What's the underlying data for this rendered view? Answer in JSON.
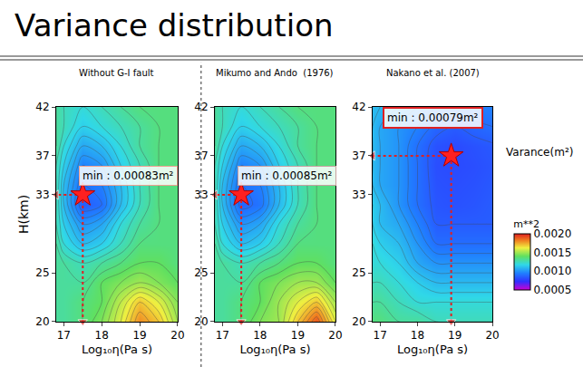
{
  "title": "Variance distribution",
  "colorbar": {
    "title": "m**2",
    "label": "Varance(m²)",
    "range": [
      0.0005,
      0.002
    ],
    "ticks": [
      {
        "value": 0.0005,
        "label": "0.0005"
      },
      {
        "value": 0.001,
        "label": "0.0010"
      },
      {
        "value": 0.0015,
        "label": "0.0015"
      },
      {
        "value": 0.002,
        "label": "0.0020"
      }
    ]
  },
  "chart_data": [
    {
      "type": "heatmap",
      "subtitle": "Without G-I fault",
      "x_label": "Log₁₀η(Pa s)",
      "y_label": "H(km)",
      "xlim": [
        16.8,
        20
      ],
      "ylim": [
        20,
        42
      ],
      "xticks": [
        17,
        18,
        19,
        20
      ],
      "yticks": [
        20,
        25,
        33,
        37,
        42
      ],
      "x": [
        16.8,
        17,
        17.5,
        18,
        18.5,
        19,
        19.5,
        20
      ],
      "y": [
        20,
        22,
        24,
        26,
        28,
        30,
        32,
        34,
        36,
        38,
        40,
        42
      ],
      "z": [
        [
          0.0013,
          0.0013,
          0.00135,
          0.00145,
          0.0016,
          0.0018,
          0.0017,
          0.0015
        ],
        [
          0.0013,
          0.0013,
          0.00135,
          0.0014,
          0.00155,
          0.0017,
          0.0016,
          0.00145
        ],
        [
          0.0013,
          0.0013,
          0.0013,
          0.0014,
          0.00145,
          0.0015,
          0.00145,
          0.0014
        ],
        [
          0.0013,
          0.0013,
          0.00125,
          0.0013,
          0.00135,
          0.0014,
          0.0014,
          0.00135
        ],
        [
          0.0013,
          0.0012,
          0.0011,
          0.00115,
          0.00125,
          0.00135,
          0.00135,
          0.00135
        ],
        [
          0.00125,
          0.00115,
          0.001,
          0.00105,
          0.0012,
          0.0013,
          0.00135,
          0.00135
        ],
        [
          0.00125,
          0.0011,
          0.00085,
          0.0009,
          0.0011,
          0.00125,
          0.00135,
          0.00135
        ],
        [
          0.00125,
          0.0011,
          0.0009,
          0.00095,
          0.0011,
          0.00125,
          0.00135,
          0.00135
        ],
        [
          0.00125,
          0.00115,
          0.00095,
          0.001,
          0.00115,
          0.00125,
          0.00135,
          0.00135
        ],
        [
          0.0013,
          0.0012,
          0.00105,
          0.0011,
          0.0012,
          0.0013,
          0.00135,
          0.00135
        ],
        [
          0.0013,
          0.00125,
          0.00115,
          0.0012,
          0.00125,
          0.0013,
          0.00135,
          0.00135
        ],
        [
          0.0013,
          0.00125,
          0.0012,
          0.00125,
          0.0013,
          0.00135,
          0.00135,
          0.00135
        ]
      ],
      "min": {
        "x": 17.5,
        "y": 33,
        "value": 0.00083,
        "label": "min : 0.00083m²"
      }
    },
    {
      "type": "heatmap",
      "subtitle": "Mikumo and Ando  (1976)",
      "x_label": "Log₁₀η(Pa s)",
      "xlim": [
        16.8,
        20
      ],
      "ylim": [
        20,
        42
      ],
      "xticks": [
        17,
        18,
        19,
        20
      ],
      "yticks": [
        20,
        25,
        33,
        37,
        42
      ],
      "x": [
        16.8,
        17,
        17.5,
        18,
        18.5,
        19,
        19.5,
        20
      ],
      "y": [
        20,
        22,
        24,
        26,
        28,
        30,
        32,
        34,
        36,
        38,
        40,
        42
      ],
      "z": [
        [
          0.0013,
          0.0013,
          0.00135,
          0.00145,
          0.0015,
          0.0017,
          0.0019,
          0.0016
        ],
        [
          0.0013,
          0.0013,
          0.00135,
          0.0014,
          0.0015,
          0.0016,
          0.0017,
          0.0015
        ],
        [
          0.0013,
          0.0013,
          0.0013,
          0.0014,
          0.00145,
          0.0015,
          0.0015,
          0.0014
        ],
        [
          0.0013,
          0.0013,
          0.00125,
          0.0013,
          0.00135,
          0.0014,
          0.0014,
          0.00135
        ],
        [
          0.0013,
          0.0012,
          0.0011,
          0.00115,
          0.00125,
          0.00135,
          0.00135,
          0.00135
        ],
        [
          0.00125,
          0.00115,
          0.001,
          0.00105,
          0.0012,
          0.0013,
          0.00135,
          0.00135
        ],
        [
          0.00125,
          0.0011,
          0.00087,
          0.00092,
          0.0011,
          0.00125,
          0.00135,
          0.00135
        ],
        [
          0.00125,
          0.0011,
          0.0009,
          0.00095,
          0.0011,
          0.00125,
          0.00135,
          0.00135
        ],
        [
          0.00125,
          0.00115,
          0.00095,
          0.001,
          0.00115,
          0.00125,
          0.00135,
          0.00135
        ],
        [
          0.0013,
          0.0012,
          0.00105,
          0.0011,
          0.0012,
          0.0013,
          0.00135,
          0.00135
        ],
        [
          0.0013,
          0.00125,
          0.00115,
          0.0012,
          0.00125,
          0.0013,
          0.00135,
          0.00135
        ],
        [
          0.0013,
          0.00125,
          0.0012,
          0.00125,
          0.0013,
          0.00135,
          0.00135,
          0.00135
        ]
      ],
      "min": {
        "x": 17.5,
        "y": 33,
        "value": 0.00085,
        "label": "min : 0.00085m²"
      }
    },
    {
      "type": "heatmap",
      "subtitle": "Nakano et al. (2007)",
      "x_label": "Log₁₀η(Pa s)",
      "xlim": [
        16.8,
        20
      ],
      "ylim": [
        20,
        42
      ],
      "xticks": [
        17,
        18,
        19,
        20
      ],
      "yticks": [
        20,
        25,
        33,
        37,
        42
      ],
      "x": [
        16.8,
        17,
        17.5,
        18,
        18.5,
        19,
        19.5,
        20
      ],
      "y": [
        20,
        22,
        24,
        26,
        28,
        30,
        32,
        34,
        36,
        38,
        40,
        42
      ],
      "z": [
        [
          0.00135,
          0.00135,
          0.0013,
          0.0013,
          0.00125,
          0.00125,
          0.00125,
          0.00125
        ],
        [
          0.0013,
          0.0013,
          0.00125,
          0.0012,
          0.0012,
          0.0012,
          0.0012,
          0.0012
        ],
        [
          0.00125,
          0.00125,
          0.0012,
          0.00115,
          0.0011,
          0.0011,
          0.0011,
          0.0011
        ],
        [
          0.0012,
          0.0012,
          0.00115,
          0.00105,
          0.001,
          0.001,
          0.001,
          0.001
        ],
        [
          0.0012,
          0.00115,
          0.0011,
          0.001,
          0.0009,
          0.0009,
          0.0009,
          0.0009
        ],
        [
          0.00115,
          0.0011,
          0.00105,
          0.00095,
          0.00085,
          0.00085,
          0.00085,
          0.00085
        ],
        [
          0.00115,
          0.0011,
          0.001,
          0.0009,
          0.00083,
          0.00082,
          0.00083,
          0.00085
        ],
        [
          0.0011,
          0.00105,
          0.001,
          0.0009,
          0.00082,
          0.00081,
          0.00082,
          0.00084
        ],
        [
          0.0011,
          0.00105,
          0.001,
          0.0009,
          0.00081,
          0.0008,
          0.00081,
          0.00083
        ],
        [
          0.0011,
          0.00105,
          0.001,
          0.0009,
          0.00082,
          0.0008,
          0.00082,
          0.00084
        ],
        [
          0.0011,
          0.00105,
          0.001,
          0.00095,
          0.00088,
          0.00085,
          0.00088,
          0.0009
        ],
        [
          0.0011,
          0.0011,
          0.00105,
          0.001,
          0.00095,
          0.00095,
          0.00095,
          0.00095
        ]
      ],
      "min": {
        "x": 18.9,
        "y": 37,
        "value": 0.00079,
        "label": "min : 0.00079m²"
      }
    }
  ]
}
